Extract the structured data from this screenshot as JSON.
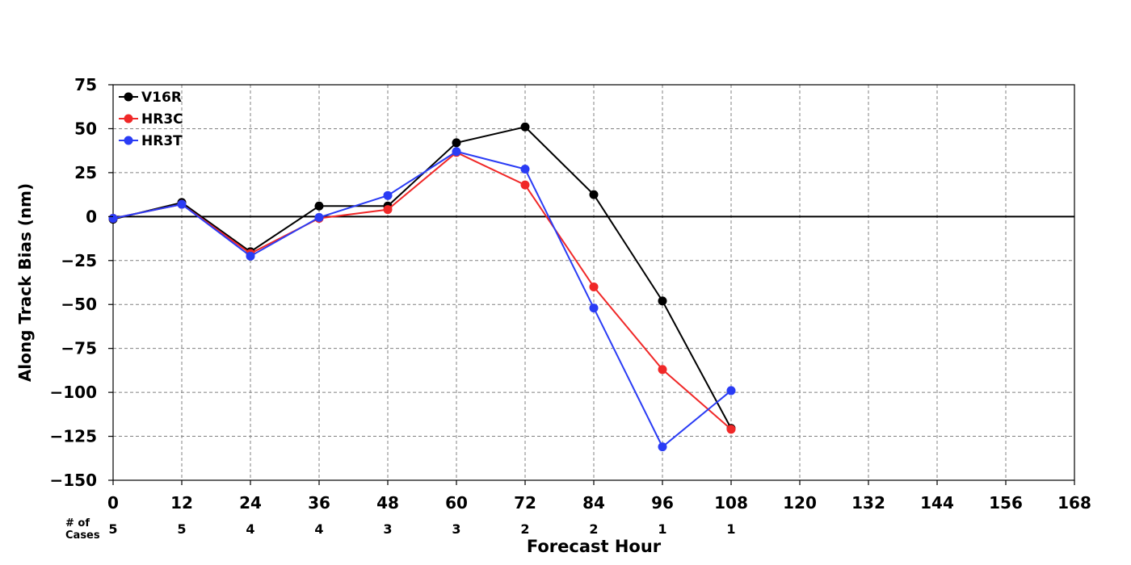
{
  "chart_data": {
    "type": "line",
    "xlabel": "Forecast Hour",
    "ylabel": "Along Track Bias (nm)",
    "xlim": [
      0,
      168
    ],
    "ylim": [
      -150,
      75
    ],
    "xticks": [
      0,
      12,
      24,
      36,
      48,
      60,
      72,
      84,
      96,
      108,
      120,
      132,
      144,
      156,
      168
    ],
    "yticks": [
      75,
      50,
      25,
      0,
      -25,
      -50,
      -75,
      -100,
      -125,
      -150
    ],
    "ytick_labels": [
      "75",
      "50",
      "25",
      "0",
      "−25",
      "−50",
      "−75",
      "−100",
      "−125",
      "−150"
    ],
    "grid": true,
    "legend_position": "top-left",
    "cases_label": "# of\nCases",
    "cases": [
      {
        "x": 0,
        "n": "5"
      },
      {
        "x": 12,
        "n": "5"
      },
      {
        "x": 24,
        "n": "4"
      },
      {
        "x": 36,
        "n": "4"
      },
      {
        "x": 48,
        "n": "3"
      },
      {
        "x": 60,
        "n": "3"
      },
      {
        "x": 72,
        "n": "2"
      },
      {
        "x": 84,
        "n": "2"
      },
      {
        "x": 96,
        "n": "1"
      },
      {
        "x": 108,
        "n": "1"
      }
    ],
    "series": [
      {
        "name": "V16R",
        "color": "#000000",
        "x": [
          0,
          12,
          24,
          36,
          48,
          60,
          72,
          84,
          96,
          108
        ],
        "values": [
          -1.5,
          8,
          -20,
          6,
          6,
          42,
          51,
          12.5,
          -48,
          -120.5
        ]
      },
      {
        "name": "HR3C",
        "color": "#f02828",
        "x": [
          0,
          12,
          24,
          36,
          48,
          60,
          72,
          84,
          96,
          108
        ],
        "values": [
          -1,
          7,
          -21,
          -1,
          4,
          36.5,
          18,
          -40,
          -87,
          -121
        ]
      },
      {
        "name": "HR3T",
        "color": "#2a3cf5",
        "x": [
          0,
          12,
          24,
          36,
          48,
          60,
          72,
          84,
          96,
          108
        ],
        "values": [
          -1,
          7,
          -22.5,
          -0.5,
          12,
          37,
          27,
          -52,
          -131,
          -99
        ]
      }
    ]
  }
}
